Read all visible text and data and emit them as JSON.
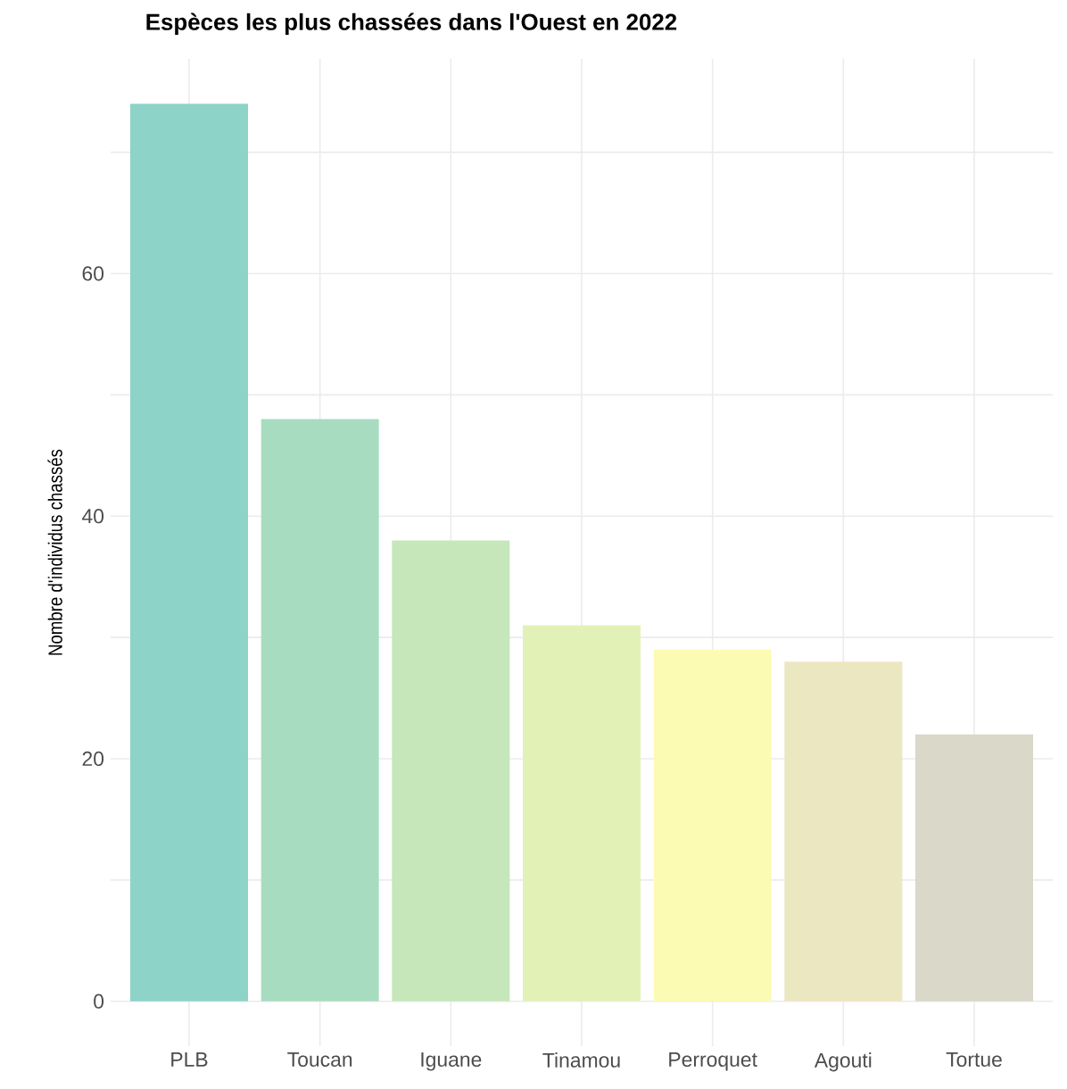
{
  "chart_data": {
    "type": "bar",
    "title": "Espèces les plus chassées dans l'Ouest en 2022",
    "ylabel": "Nombre d'individus chassés",
    "categories": [
      "PLB",
      "Toucan",
      "Iguane",
      "Tinamou",
      "Perroquet",
      "Agouti",
      "Tortue"
    ],
    "values": [
      74,
      48,
      38,
      31,
      29,
      28,
      22
    ],
    "colors": [
      "#8dd3c7",
      "#a8dcc0",
      "#c6e7b9",
      "#e2f2b6",
      "#fbfbb3",
      "#ebe7c0",
      "#d9d8c9"
    ],
    "ylim": [
      -3.7,
      77.7
    ],
    "yticks": [
      0,
      {
        "value": 10,
        "label": null
      },
      20,
      {
        "value": 30,
        "label": null
      },
      40,
      {
        "value": 50,
        "label": null
      },
      60,
      {
        "value": 70,
        "label": null
      }
    ],
    "grid": true
  }
}
